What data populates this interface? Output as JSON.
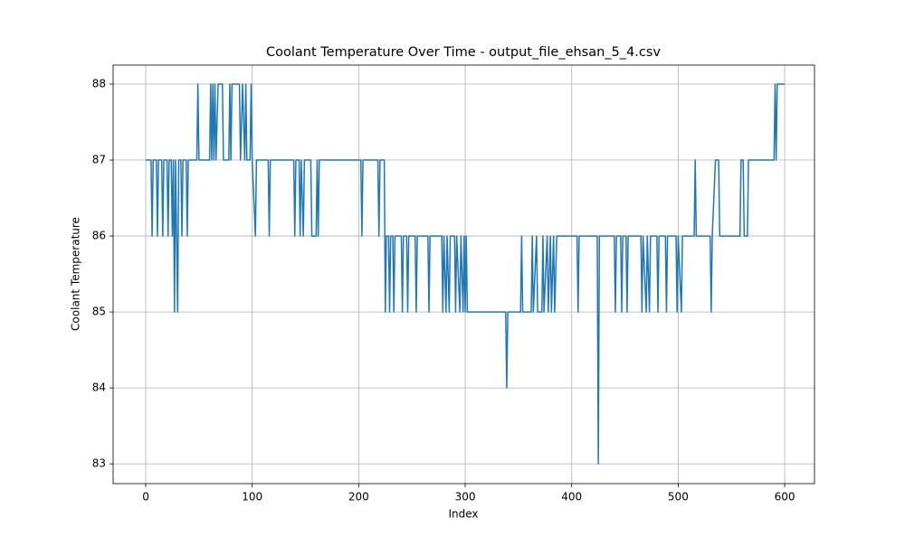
{
  "chart_data": {
    "type": "line",
    "title": "Coolant Temperature Over Time - output_file_ehsan_5_4.csv",
    "x_label": "Index",
    "y_label": "Coolant Temperature",
    "x": [
      0,
      5,
      6,
      7,
      10,
      11,
      12,
      15,
      16,
      17,
      20,
      21,
      22,
      24,
      25,
      26,
      27,
      28,
      29,
      30,
      31,
      33,
      34,
      35,
      38,
      39,
      40,
      48,
      49,
      50,
      60,
      61,
      62,
      63,
      64,
      65,
      66,
      68,
      72,
      73,
      78,
      79,
      80,
      81,
      88,
      89,
      91,
      93,
      94,
      95,
      98,
      99,
      100,
      103,
      104,
      115,
      116,
      117,
      139,
      140,
      141,
      144,
      145,
      146,
      148,
      149,
      155,
      156,
      160,
      161,
      162,
      163,
      202,
      203,
      204,
      218,
      219,
      220,
      224,
      225,
      226,
      228,
      229,
      230,
      232,
      233,
      234,
      240,
      241,
      242,
      245,
      246,
      247,
      253,
      254,
      255,
      265,
      266,
      267,
      278,
      279,
      280,
      282,
      283,
      285,
      286,
      290,
      291,
      292,
      295,
      296,
      298,
      299,
      300,
      301,
      302,
      338,
      339,
      340,
      352,
      353,
      354,
      362,
      363,
      364,
      367,
      368,
      372,
      373,
      374,
      377,
      378,
      380,
      381,
      383,
      384,
      386,
      405,
      406,
      407,
      424,
      425,
      426,
      440,
      441,
      442,
      446,
      447,
      448,
      451,
      452,
      453,
      465,
      466,
      467,
      470,
      471,
      473,
      474,
      480,
      481,
      482,
      488,
      489,
      490,
      498,
      499,
      500,
      503,
      504,
      515,
      516,
      517,
      530,
      531,
      532,
      535,
      538,
      539,
      558,
      559,
      561,
      562,
      565,
      566,
      590,
      591,
      592,
      593,
      600
    ],
    "series": [
      {
        "name": "Coolant Temperature",
        "color": "#1f77b4",
        "values": [
          87,
          87,
          86,
          87,
          87,
          86,
          87,
          87,
          86,
          87,
          87,
          86,
          87,
          87,
          86,
          87,
          85,
          87,
          86,
          85,
          87,
          87,
          86,
          87,
          87,
          86,
          87,
          87,
          88,
          87,
          87,
          88,
          87,
          88,
          87,
          88,
          87,
          88,
          88,
          87,
          87,
          88,
          87,
          88,
          88,
          87,
          88,
          87,
          88,
          87,
          87,
          88,
          87,
          86,
          87,
          87,
          86,
          87,
          87,
          86,
          87,
          87,
          86,
          87,
          86,
          87,
          87,
          86,
          86,
          87,
          86,
          87,
          87,
          86,
          87,
          87,
          86,
          87,
          87,
          85,
          86,
          86,
          85,
          86,
          86,
          85,
          86,
          86,
          85,
          86,
          86,
          85,
          86,
          86,
          85,
          86,
          86,
          85,
          86,
          86,
          85,
          86,
          85,
          86,
          85,
          86,
          86,
          85,
          86,
          85,
          86,
          85,
          86,
          85,
          86,
          85,
          85,
          84,
          85,
          85,
          86,
          85,
          85,
          86,
          85,
          86,
          85,
          85,
          86,
          85,
          86,
          85,
          86,
          85,
          86,
          85,
          86,
          86,
          85,
          86,
          86,
          83,
          86,
          86,
          85,
          86,
          86,
          85,
          86,
          86,
          85,
          86,
          86,
          85,
          86,
          85,
          86,
          85,
          86,
          86,
          85,
          86,
          86,
          85,
          86,
          86,
          85,
          86,
          85,
          86,
          86,
          87,
          86,
          86,
          85,
          86,
          87,
          87,
          86,
          86,
          87,
          87,
          86,
          86,
          87,
          87,
          88,
          87,
          88,
          88
        ]
      }
    ],
    "xlim": [
      -30.6,
      628
    ],
    "ylim": [
      82.74,
      88.25
    ],
    "xticks": [
      0,
      100,
      200,
      300,
      400,
      500,
      600
    ],
    "yticks": [
      83,
      84,
      85,
      86,
      87,
      88
    ],
    "grid": true
  }
}
